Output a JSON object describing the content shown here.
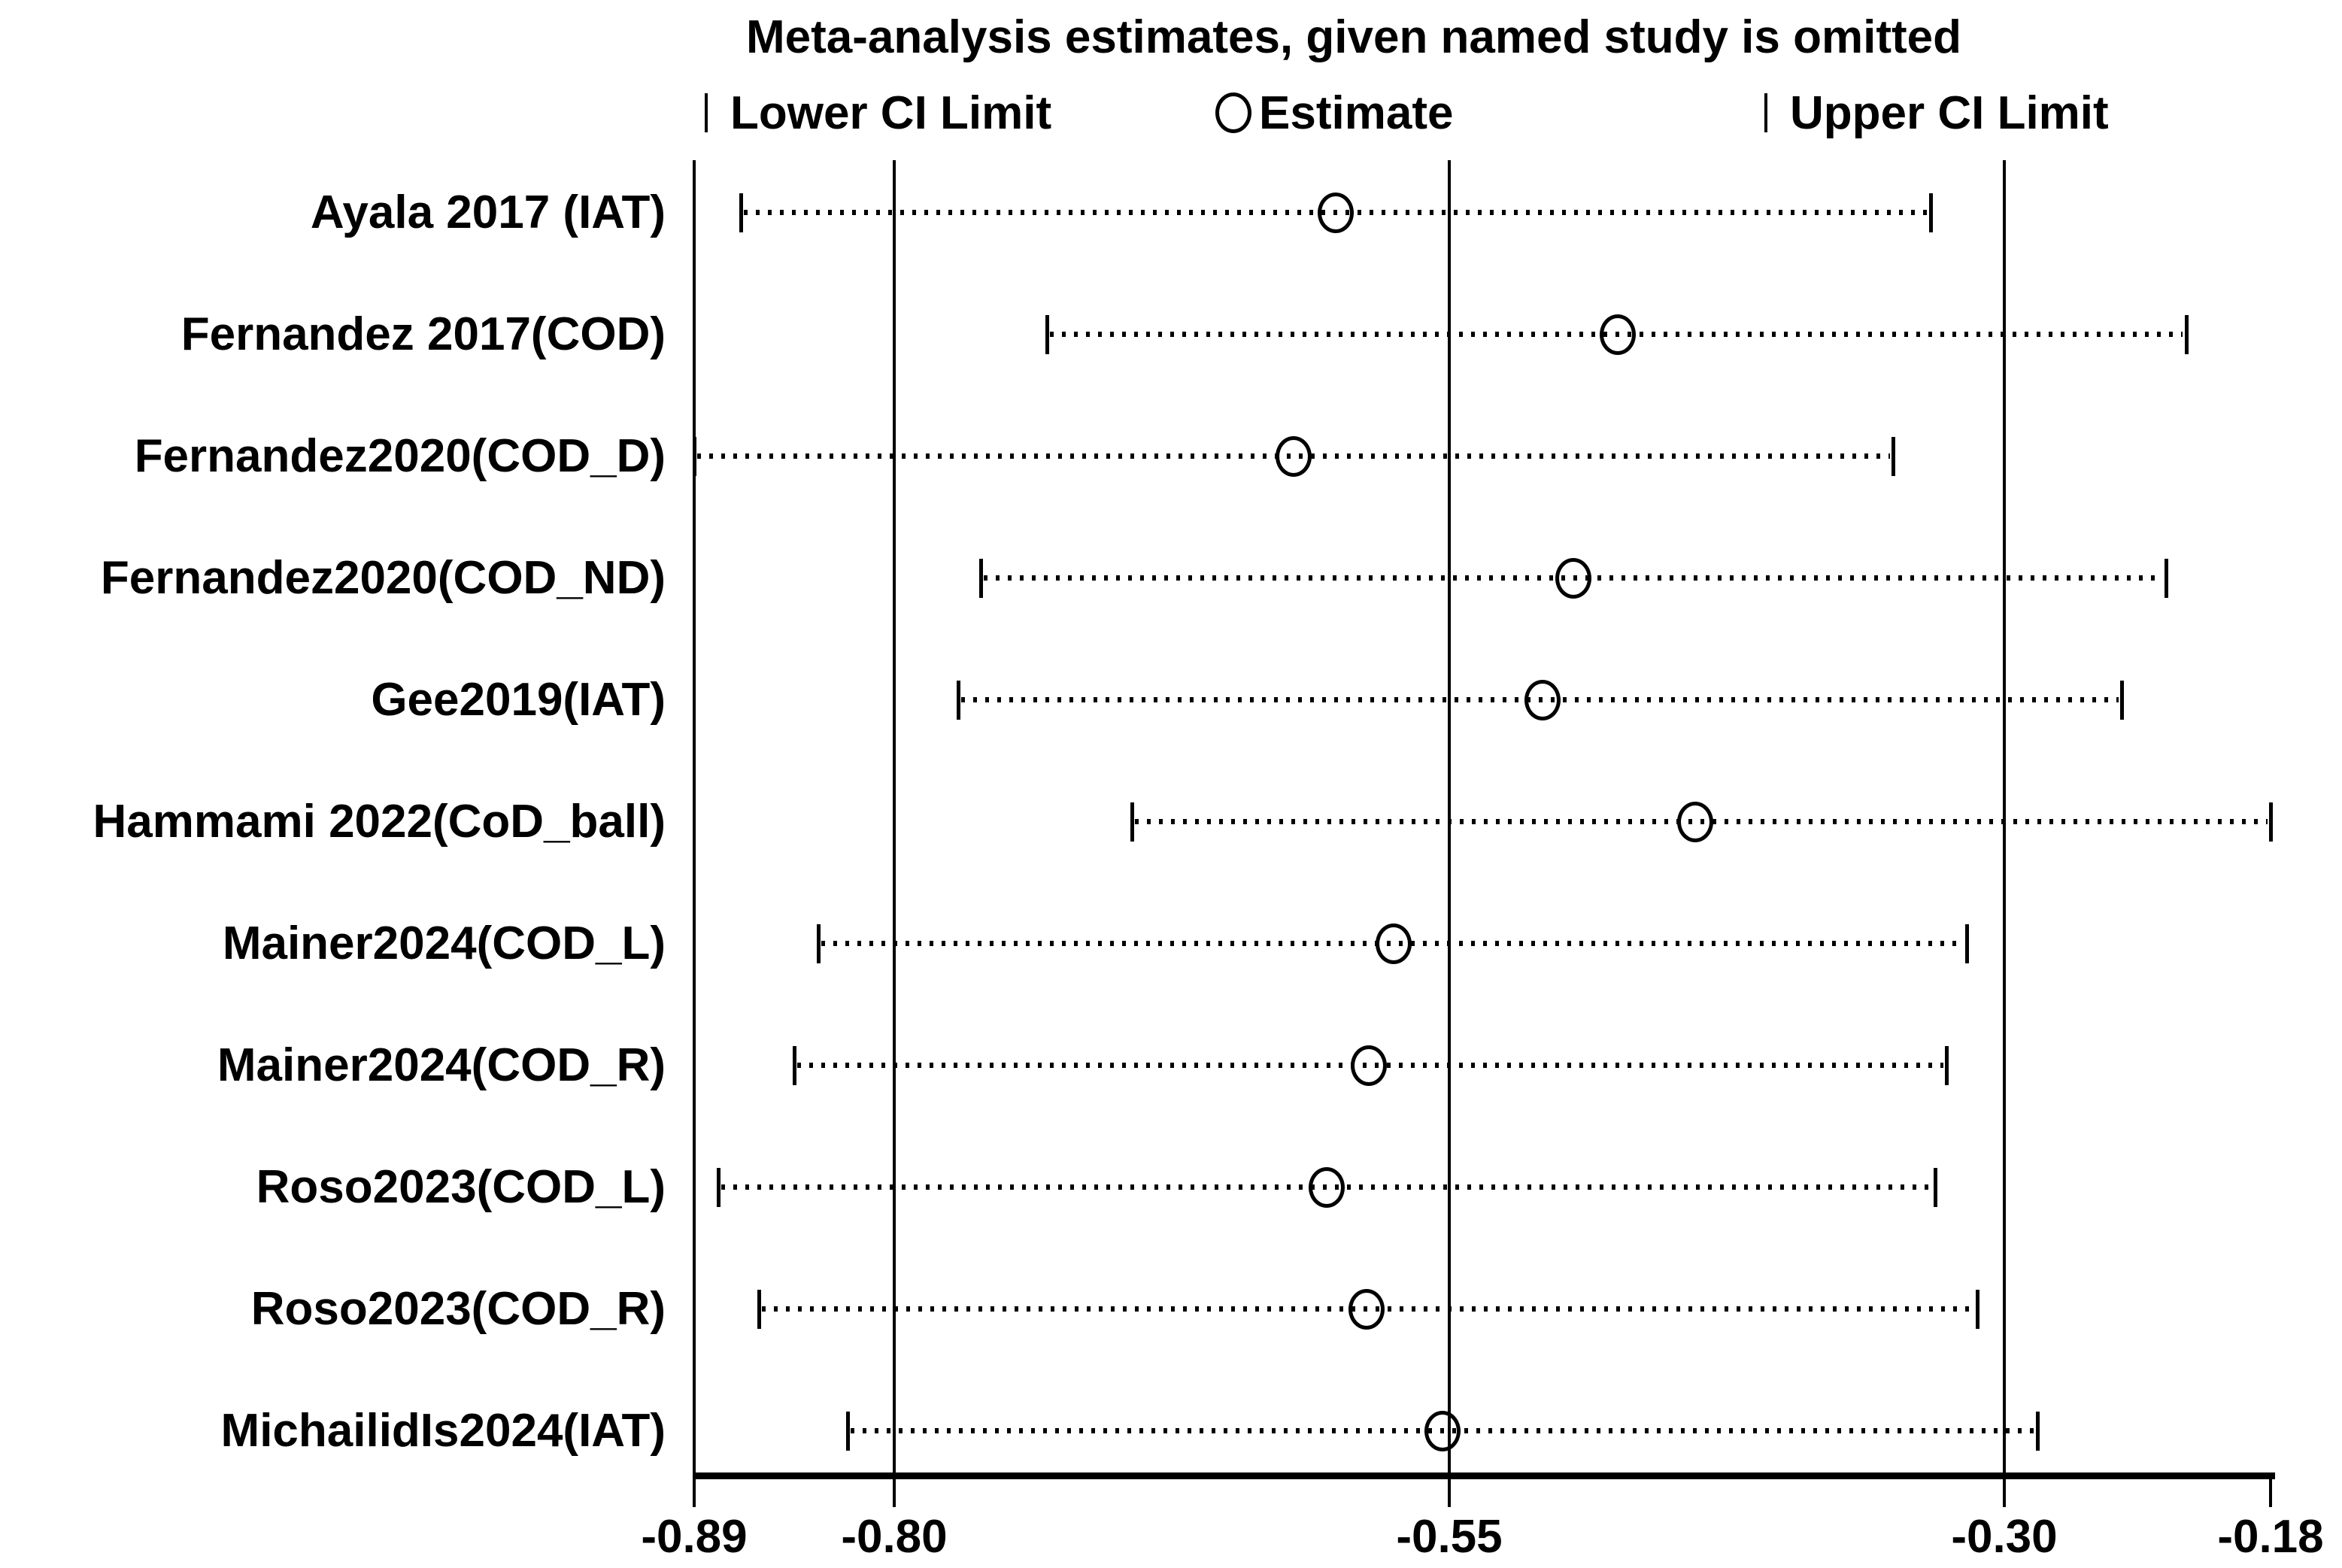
{
  "chart_data": {
    "type": "forest",
    "title": "Meta-analysis estimates, given named study is omitted",
    "legend": {
      "lower": "Lower CI Limit",
      "estimate": "Estimate",
      "upper": "Upper CI Limit"
    },
    "x_axis": {
      "range": [
        -0.89,
        -0.18
      ],
      "tick_values": [
        -0.89,
        -0.8,
        -0.55,
        -0.3,
        -0.18
      ],
      "tick_labels": [
        "-0.89",
        "-0.80",
        "-0.55",
        "-0.30",
        "-0.18"
      ],
      "gridline_values": [
        -0.89,
        -0.8,
        -0.55,
        -0.3
      ],
      "grid": "vertical reference lines at overall estimate and CI limits"
    },
    "studies": [
      {
        "label": "Ayala 2017 (IAT)",
        "lower": -0.869,
        "estimate": -0.601,
        "upper": -0.333
      },
      {
        "label": "Fernandez 2017(COD)",
        "lower": -0.731,
        "estimate": -0.474,
        "upper": -0.218
      },
      {
        "label": "Fernandez2020(COD_D)",
        "lower": -0.89,
        "estimate": -0.62,
        "upper": -0.35
      },
      {
        "label": "Fernandez2020(COD_ND)",
        "lower": -0.761,
        "estimate": -0.494,
        "upper": -0.227
      },
      {
        "label": "Gee2019(IAT)",
        "lower": -0.771,
        "estimate": -0.508,
        "upper": -0.247
      },
      {
        "label": "Hammami 2022(CoD_ball)",
        "lower": -0.693,
        "estimate": -0.439,
        "upper": -0.18
      },
      {
        "label": "Mainer2024(COD_L)",
        "lower": -0.834,
        "estimate": -0.575,
        "upper": -0.317
      },
      {
        "label": "Mainer2024(COD_R)",
        "lower": -0.845,
        "estimate": -0.586,
        "upper": -0.326
      },
      {
        "label": "Roso2023(COD_L)",
        "lower": -0.879,
        "estimate": -0.605,
        "upper": -0.331
      },
      {
        "label": "Roso2023(COD_R)",
        "lower": -0.861,
        "estimate": -0.587,
        "upper": -0.312
      },
      {
        "label": "MichailidIs2024(IAT)",
        "lower": -0.821,
        "estimate": -0.553,
        "upper": -0.285
      }
    ],
    "colors": {
      "foreground": "#000000",
      "background": "#ffffff"
    }
  }
}
